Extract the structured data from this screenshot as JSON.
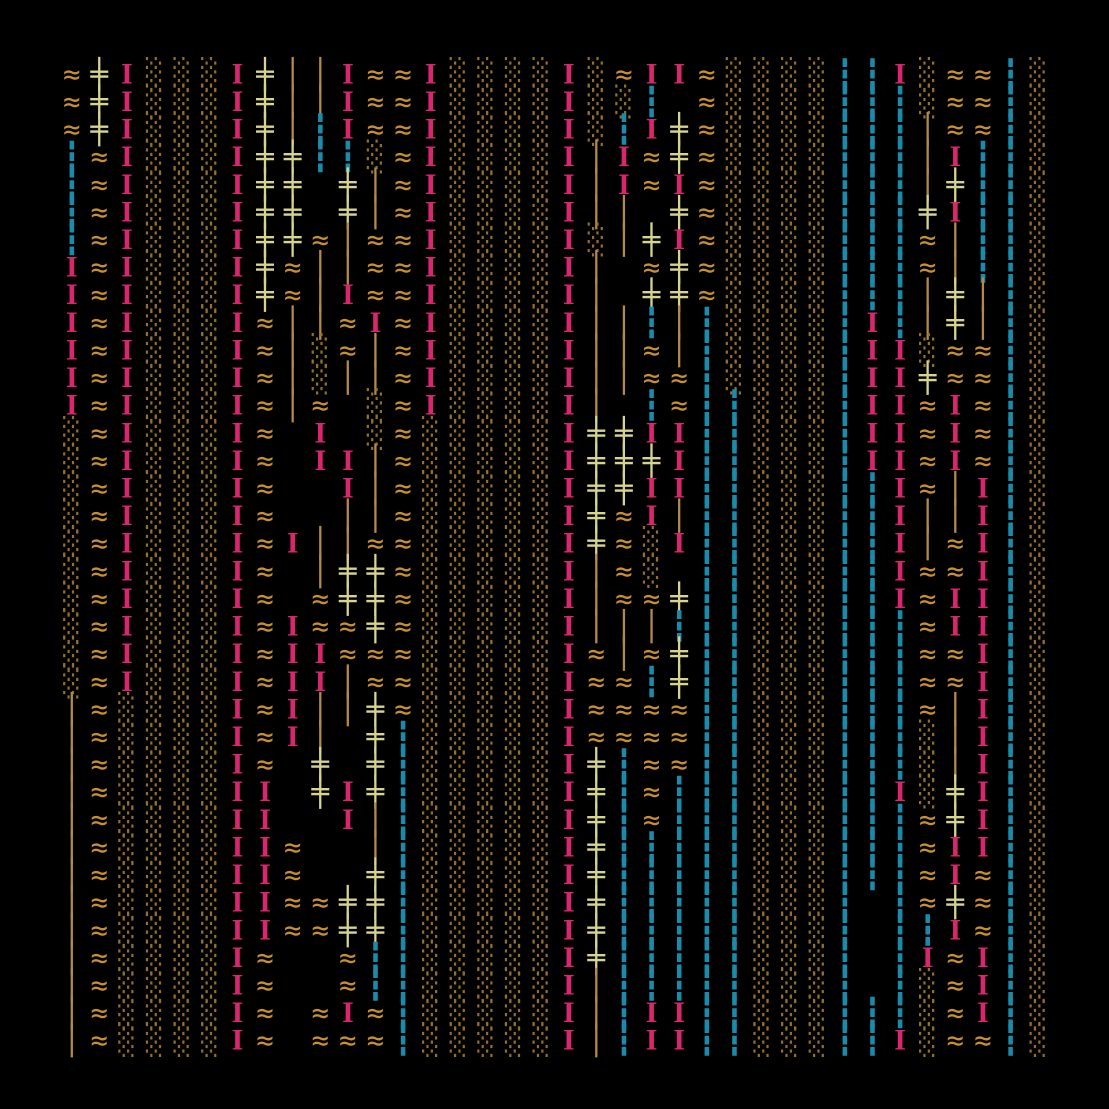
{
  "grid": {
    "background": "#000000",
    "colors": {
      "≈": "#c8902f",
      "╪": "#d6d48e",
      "I": "#d8266f",
      "│": "#b48a4c",
      "░": "#94702c",
      "┇": "#1a8cab",
      " ": "#000000"
    },
    "rows": [
      "≈╪I░░░I╪││I≈≈I░░░░I░≈II≈░░░░┇┇I░≈≈┇░",
      "≈╪I░░░I╪││I≈≈I░░░░I░░┇ ≈░░░░┇┇┇░≈≈┇░",
      "≈╪I░░░I╪│┇I≈≈I░░░░I░┇I╪≈░░░░┇┇┇│≈≈┇░",
      "┇≈I░░░I╪╪┇┇░≈I░░░░I│I≈╪≈░░░░┇┇┇│I┇┇░",
      "┇≈I░░░I╪╪ ╪│≈I░░░░I│I≈I≈░░░░┇┇┇│╪┇┇░",
      "┇≈I░░░I╪╪ ╪│≈I░░░░I││ ╪≈░░░░┇┇┇╪I┇┇░",
      "┇≈I░░░I╪╪≈│≈≈I░░░░I░│╪I≈░░░░┇┇┇≈│┇┇░",
      "I≈I░░░I╪≈││≈≈I░░░░I│ ≈╪≈░░░░┇┇┇≈│┇┇░",
      "I≈I░░░I╪≈│I≈≈I░░░░I│ ╪╪≈░░░░┇┇┇│╪│┇░",
      "I≈I░░░I≈││≈I≈I░░░░I││┇│┇░░░░┇I┇│╪│┇░",
      "I≈I░░░I≈│░≈│≈I░░░░I││≈│┇░░░░┇II░≈≈┇░",
      "I≈I░░░I≈│░││≈I░░░░I││≈≈┇░░░░┇II╪≈≈┇░",
      "I≈I░░░I≈│≈ ░≈I░░░░I│ ┇≈┇┇░░░┇II≈I≈┇░",
      "░≈I░░░I≈ I ░≈░░░░░I╪╪II┇┇░░░┇II≈I≈┇░",
      "░≈I░░░I≈ II│≈░░░░░I╪╪╪I┇┇░░░┇II≈I≈┇░",
      "░≈I░░░I≈  I│≈░░░░░I╪╪II┇┇░░░┇┇I≈│I┇░",
      "░≈I░░░I≈  ││≈░░░░░I╪≈I│┇┇░░░┇┇I││I┇░",
      "░≈I░░░I≈I││≈≈░░░░░I╪≈░I┇┇░░░┇┇I│≈I┇░",
      "░≈I░░░I≈ │╪╪≈░░░░░I│≈░ ┇┇░░░┇┇I≈≈I┇░",
      "░≈I░░░I≈ ≈╪╪≈░░░░░I│≈≈╪┇┇░░░┇┇I≈II┇░",
      "░≈I░░░I≈I≈≈╪≈░░░░░I│││┇┇┇░░░┇┇┇≈II┇░",
      "░≈I░░░I≈II≈≈≈░░░░░I≈│≈╪┇┇░░░┇┇┇≈≈I┇░",
      "░≈I░░░I≈II│≈≈░░░░░I≈≈┇╪┇┇░░░┇┇┇≈≈I┇░",
      "│≈░░░░I≈I││╪≈░░░░░I≈≈≈≈┇┇░░░┇┇┇≈│I┇░",
      "│≈░░░░I≈I│ ╪┇░░░░░I≈≈≈≈┇┇░░░┇┇┇░│I┇░",
      "│≈░░░░I≈ ╪ ╪┇░░░░░I╪┇≈≈┇┇░░░┇┇┇░│I┇░",
      "│≈░░░░II ╪I╪┇░░░░░I╪┇≈┇┇┇░░░┇┇I░╪I┇░",
      "│≈░░░░II  I│┇░░░░░I╪┇≈┇┇┇░░░┇┇┇≈╪I┇░",
      "│≈░░░░II≈  │┇░░░░░I╪┇┇┇┇┇░░░┇┇┇≈II┇░",
      "│≈░░░░II≈  ╪┇░░░░░I╪┇┇┇┇┇░░░┇┇┇≈I≈┇░",
      "│≈░░░░II≈≈╪╪┇░░░░░I╪┇┇┇┇┇░░░┇ ┇≈╪≈┇░",
      "│≈░░░░II≈≈╪╪┇░░░░░I╪┇┇┇┇┇░░░┇ ┇┇I≈┇░",
      "│≈░░░░I≈  ≈┇┇░░░░░I╪┇┇┇┇┇░░░┇ ┇I≈I┇░",
      "│≈░░░░I≈  ≈┇┇░░░░░I│┇┇┇┇┇░░░┇ ┇░≈I┇░",
      "│≈░░░░I≈ ≈I≈┇░░░░░I│┇II┇┇░░░┇┇┇░≈I┇░",
      "│≈░░░░I≈ ≈≈≈┇░░░░░I│┇II┇┇░░░┇┇I░≈≈┇░"
    ]
  }
}
